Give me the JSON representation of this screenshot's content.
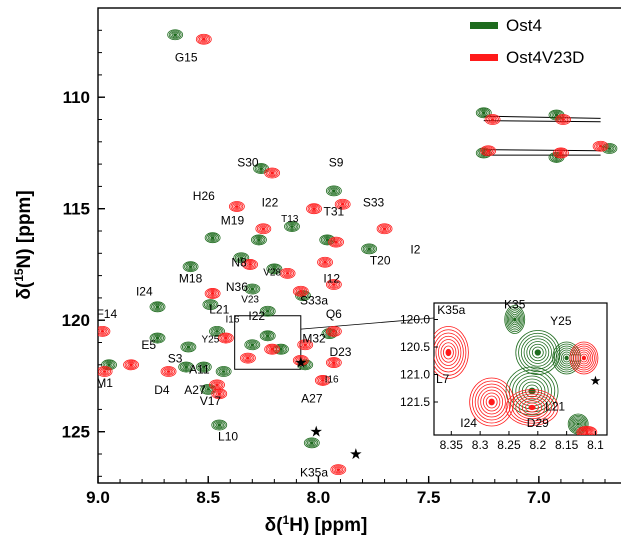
{
  "chart_data": {
    "type": "scatter",
    "x_axis": {
      "label_prefix": "δ(",
      "label_sup": "1",
      "label_suffix": "H) [ppm]",
      "range": [
        9.0,
        6.65
      ],
      "reversed": true,
      "ticks": [
        "9.0",
        "8.5",
        "8.0",
        "7.5",
        "7.0"
      ]
    },
    "y_axis": {
      "label_prefix": "δ(",
      "label_sup": "15",
      "label_suffix": "N) [ppm]",
      "range": [
        106.0,
        127.3
      ],
      "reversed": true,
      "ticks": [
        "110",
        "115",
        "120",
        "125"
      ]
    },
    "legend": {
      "placement": "top-right",
      "entries": [
        {
          "name": "Ost4",
          "color": "#1e6b1e"
        },
        {
          "name": "Ost4V23D",
          "color": "#ff1a1a"
        }
      ]
    },
    "series": [
      {
        "name": "Ost4",
        "color": "#1e6b1e",
        "points": [
          {
            "x": 8.65,
            "y": 107.2
          },
          {
            "x": 8.26,
            "y": 113.2
          },
          {
            "x": 7.93,
            "y": 114.2
          },
          {
            "x": 8.48,
            "y": 116.3
          },
          {
            "x": 8.27,
            "y": 116.4
          },
          {
            "x": 8.12,
            "y": 115.8
          },
          {
            "x": 7.96,
            "y": 116.4
          },
          {
            "x": 7.77,
            "y": 116.8
          },
          {
            "x": 8.58,
            "y": 117.6
          },
          {
            "x": 8.35,
            "y": 117.2
          },
          {
            "x": 8.2,
            "y": 117.7
          },
          {
            "x": 8.3,
            "y": 118.6
          },
          {
            "x": 8.23,
            "y": 119.6
          },
          {
            "x": 8.07,
            "y": 118.9
          },
          {
            "x": 8.49,
            "y": 119.3
          },
          {
            "x": 8.46,
            "y": 120.5
          },
          {
            "x": 8.73,
            "y": 119.4
          },
          {
            "x": 8.73,
            "y": 120.8
          },
          {
            "x": 8.59,
            "y": 121.2
          },
          {
            "x": 8.3,
            "y": 121.1
          },
          {
            "x": 8.23,
            "y": 120.7
          },
          {
            "x": 8.17,
            "y": 121.3
          },
          {
            "x": 8.43,
            "y": 122.3
          },
          {
            "x": 8.6,
            "y": 122.1
          },
          {
            "x": 8.52,
            "y": 122.1
          },
          {
            "x": 8.06,
            "y": 122.0
          },
          {
            "x": 7.95,
            "y": 120.6
          },
          {
            "x": 8.95,
            "y": 122.0
          },
          {
            "x": 8.5,
            "y": 123.1
          },
          {
            "x": 8.45,
            "y": 124.7
          },
          {
            "x": 8.03,
            "y": 125.5
          },
          {
            "x": 7.25,
            "y": 110.7
          },
          {
            "x": 6.92,
            "y": 110.8
          },
          {
            "x": 7.25,
            "y": 112.5
          },
          {
            "x": 6.92,
            "y": 112.7
          },
          {
            "x": 6.68,
            "y": 112.3
          }
        ]
      },
      {
        "name": "Ost4V23D",
        "color": "#ff1a1a",
        "points": [
          {
            "x": 8.52,
            "y": 107.4
          },
          {
            "x": 8.21,
            "y": 113.4
          },
          {
            "x": 7.89,
            "y": 114.8
          },
          {
            "x": 8.37,
            "y": 114.9
          },
          {
            "x": 8.25,
            "y": 115.9
          },
          {
            "x": 8.02,
            "y": 115.0
          },
          {
            "x": 7.92,
            "y": 116.5
          },
          {
            "x": 7.7,
            "y": 115.9
          },
          {
            "x": 8.48,
            "y": 118.8
          },
          {
            "x": 8.31,
            "y": 117.5
          },
          {
            "x": 8.14,
            "y": 117.9
          },
          {
            "x": 7.97,
            "y": 117.4
          },
          {
            "x": 8.08,
            "y": 118.7
          },
          {
            "x": 7.93,
            "y": 118.4
          },
          {
            "x": 8.42,
            "y": 120.8
          },
          {
            "x": 8.98,
            "y": 120.5
          },
          {
            "x": 8.68,
            "y": 122.3
          },
          {
            "x": 8.85,
            "y": 122.0
          },
          {
            "x": 8.97,
            "y": 122.3
          },
          {
            "x": 8.32,
            "y": 121.7
          },
          {
            "x": 8.21,
            "y": 121.3
          },
          {
            "x": 8.08,
            "y": 121.8
          },
          {
            "x": 7.93,
            "y": 120.5
          },
          {
            "x": 8.06,
            "y": 121.1
          },
          {
            "x": 7.98,
            "y": 122.7
          },
          {
            "x": 7.93,
            "y": 121.9
          },
          {
            "x": 8.46,
            "y": 122.9
          },
          {
            "x": 8.45,
            "y": 123.3
          },
          {
            "x": 7.91,
            "y": 126.7
          },
          {
            "x": 7.21,
            "y": 111.0
          },
          {
            "x": 6.89,
            "y": 111.0
          },
          {
            "x": 7.23,
            "y": 112.4
          },
          {
            "x": 6.9,
            "y": 112.5
          },
          {
            "x": 6.72,
            "y": 112.2
          }
        ]
      }
    ],
    "annotations": [
      {
        "text": "G15",
        "x": 8.6,
        "y": 108.4
      },
      {
        "text": "S30",
        "x": 8.32,
        "y": 113.1
      },
      {
        "text": "S9",
        "x": 7.92,
        "y": 113.1
      },
      {
        "text": "H26",
        "x": 8.52,
        "y": 114.6
      },
      {
        "text": "S33",
        "x": 7.75,
        "y": 114.9
      },
      {
        "text": "I22",
        "x": 8.22,
        "y": 114.9
      },
      {
        "text": "T31",
        "x": 7.93,
        "y": 115.3
      },
      {
        "text": "M19",
        "x": 8.39,
        "y": 115.7
      },
      {
        "text": "T13",
        "x": 8.13,
        "y": 115.6
      },
      {
        "text": "T20",
        "x": 7.72,
        "y": 117.5
      },
      {
        "text": "I2",
        "x": 7.56,
        "y": 117.0
      },
      {
        "text": "N8",
        "x": 8.36,
        "y": 117.6
      },
      {
        "text": "M18",
        "x": 8.58,
        "y": 118.3
      },
      {
        "text": "V28",
        "x": 8.21,
        "y": 118.0
      },
      {
        "text": "I12",
        "x": 7.94,
        "y": 118.3
      },
      {
        "text": "N36",
        "x": 8.37,
        "y": 118.7
      },
      {
        "text": "V23",
        "x": 8.31,
        "y": 119.2
      },
      {
        "text": "S33a",
        "x": 8.02,
        "y": 119.3
      },
      {
        "text": "F14",
        "x": 8.96,
        "y": 119.9
      },
      {
        "text": "I24",
        "x": 8.79,
        "y": 118.9
      },
      {
        "text": "L21",
        "x": 8.45,
        "y": 119.7
      },
      {
        "text": "I16",
        "x": 8.39,
        "y": 120.1
      },
      {
        "text": "I22",
        "x": 8.28,
        "y": 120.0
      },
      {
        "text": "Q6",
        "x": 7.93,
        "y": 119.9
      },
      {
        "text": "Y25",
        "x": 8.49,
        "y": 121.0
      },
      {
        "text": "E5",
        "x": 8.77,
        "y": 121.3
      },
      {
        "text": "S3",
        "x": 8.65,
        "y": 121.9
      },
      {
        "text": "M32",
        "x": 8.02,
        "y": 121.0
      },
      {
        "text": "D23",
        "x": 7.9,
        "y": 121.6
      },
      {
        "text": "A11",
        "x": 8.54,
        "y": 122.4
      },
      {
        "text": "D4",
        "x": 8.71,
        "y": 123.3
      },
      {
        "text": "A27",
        "x": 8.56,
        "y": 123.3
      },
      {
        "text": "A27",
        "x": 8.03,
        "y": 123.7
      },
      {
        "text": "I16",
        "x": 7.94,
        "y": 122.8
      },
      {
        "text": "V17",
        "x": 8.49,
        "y": 123.8
      },
      {
        "text": "M1",
        "x": 8.97,
        "y": 123.0
      },
      {
        "text": "L10",
        "x": 8.41,
        "y": 125.4
      },
      {
        "text": "K35a",
        "x": 8.02,
        "y": 127.0
      }
    ],
    "stars": [
      {
        "x": 8.08,
        "y": 121.9
      },
      {
        "x": 8.01,
        "y": 125.0
      },
      {
        "x": 7.83,
        "y": 126.0
      }
    ]
  },
  "inset": {
    "x_ticks": [
      "8.35",
      "8.3",
      "8.25",
      "8.2",
      "8.15",
      "8.1"
    ],
    "x_range": [
      8.38,
      8.08
    ],
    "y_ticks": [
      "120.0",
      "120.5",
      "121.0",
      "121.5"
    ],
    "y_range": [
      119.7,
      122.1
    ],
    "labels": [
      {
        "text": "K35a",
        "x": 8.35,
        "y": 119.9
      },
      {
        "text": "K35",
        "x": 8.24,
        "y": 119.8
      },
      {
        "text": "Y25",
        "x": 8.16,
        "y": 120.1
      },
      {
        "text": "L7",
        "x": 8.365,
        "y": 121.15
      },
      {
        "text": "I24",
        "x": 8.32,
        "y": 121.95
      },
      {
        "text": "L21",
        "x": 8.17,
        "y": 121.65
      },
      {
        "text": "D29",
        "x": 8.2,
        "y": 121.95
      }
    ],
    "star": {
      "x": 8.1,
      "y": 121.1
    }
  }
}
